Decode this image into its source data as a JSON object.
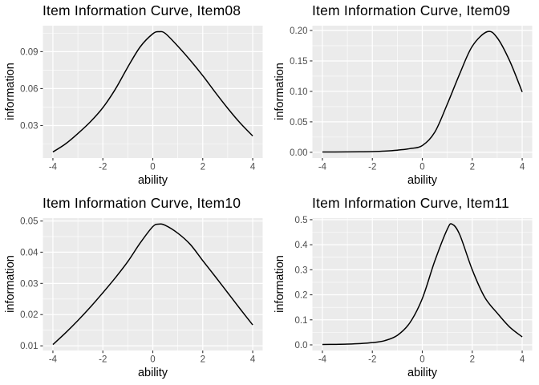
{
  "styles": {
    "panel_bg": "#EBEBEB",
    "grid_color": "#FFFFFF",
    "line_color": "#000000",
    "tick_color": "#333333",
    "tick_label_color": "#4D4D4D",
    "title_color": "#000000"
  },
  "chart_data": [
    {
      "type": "line",
      "title": "Item Information Curve, Item08",
      "xlabel": "ability",
      "ylabel": "information",
      "x_domain": [
        -4.4,
        4.4
      ],
      "y_domain": [
        0.0036,
        0.1111
      ],
      "x_ticks": [
        -4,
        -2,
        0,
        2,
        4
      ],
      "x_tick_labels": [
        "-4",
        "-2",
        "0",
        "2",
        "4"
      ],
      "y_ticks": [
        0.03,
        0.06,
        0.09
      ],
      "y_tick_labels": [
        "0.03",
        "0.06",
        "0.09"
      ],
      "grid": true,
      "legend": "none",
      "series": [
        {
          "name": "information",
          "x": [
            -4,
            -3.5,
            -3,
            -2.5,
            -2,
            -1.5,
            -1,
            -0.5,
            0,
            0.25,
            0.5,
            1,
            1.5,
            2,
            2.5,
            3,
            3.5,
            4
          ],
          "y": [
            0.0085,
            0.015,
            0.0235,
            0.033,
            0.0445,
            0.0595,
            0.0775,
            0.094,
            0.1045,
            0.1062,
            0.1048,
            0.0945,
            0.083,
            0.0705,
            0.057,
            0.044,
            0.032,
            0.0215
          ]
        }
      ]
    },
    {
      "type": "line",
      "title": "Item Information Curve, Item09",
      "xlabel": "ability",
      "ylabel": "information",
      "x_domain": [
        -4.4,
        4.4
      ],
      "y_domain": [
        -0.0094,
        0.2079
      ],
      "x_ticks": [
        -4,
        -2,
        0,
        2,
        4
      ],
      "x_tick_labels": [
        "-4",
        "-2",
        "0",
        "2",
        "4"
      ],
      "y_ticks": [
        0.0,
        0.05,
        0.1,
        0.15,
        0.2
      ],
      "y_tick_labels": [
        "0.00",
        "0.05",
        "0.10",
        "0.15",
        "0.20"
      ],
      "grid": true,
      "legend": "none",
      "series": [
        {
          "name": "information",
          "x": [
            -4,
            -3.5,
            -3,
            -2.5,
            -2,
            -1.5,
            -1,
            -0.5,
            0,
            0.5,
            1,
            1.5,
            2,
            2.6,
            3,
            3.5,
            4
          ],
          "y": [
            0.0005,
            0.0005,
            0.0006,
            0.0008,
            0.0012,
            0.002,
            0.0035,
            0.006,
            0.011,
            0.033,
            0.079,
            0.129,
            0.174,
            0.198,
            0.188,
            0.15,
            0.099
          ]
        }
      ]
    },
    {
      "type": "line",
      "title": "Item Information Curve, Item10",
      "xlabel": "ability",
      "ylabel": "information",
      "x_domain": [
        -4.4,
        4.4
      ],
      "y_domain": [
        0.0085,
        0.0509
      ],
      "x_ticks": [
        -4,
        -2,
        0,
        2,
        4
      ],
      "x_tick_labels": [
        "-4",
        "-2",
        "0",
        "2",
        "4"
      ],
      "y_ticks": [
        0.01,
        0.02,
        0.03,
        0.04,
        0.05
      ],
      "y_tick_labels": [
        "0.01",
        "0.02",
        "0.03",
        "0.04",
        "0.05"
      ],
      "grid": true,
      "legend": "none",
      "series": [
        {
          "name": "information",
          "x": [
            -4,
            -3.5,
            -3,
            -2.5,
            -2,
            -1.5,
            -1,
            -0.5,
            0,
            0.25,
            0.5,
            1,
            1.5,
            2,
            2.5,
            3,
            3.5,
            4
          ],
          "y": [
            0.0104,
            0.0141,
            0.0181,
            0.0224,
            0.027,
            0.0318,
            0.037,
            0.043,
            0.0482,
            0.049,
            0.0486,
            0.0461,
            0.0425,
            0.0373,
            0.0322,
            0.027,
            0.0218,
            0.0167
          ]
        }
      ]
    },
    {
      "type": "line",
      "title": "Item Information Curve, Item11",
      "xlabel": "ability",
      "ylabel": "information",
      "x_domain": [
        -4.4,
        4.4
      ],
      "y_domain": [
        -0.0225,
        0.5061
      ],
      "x_ticks": [
        -4,
        -2,
        0,
        2,
        4
      ],
      "x_tick_labels": [
        "-4",
        "-2",
        "0",
        "2",
        "4"
      ],
      "y_ticks": [
        0.0,
        0.1,
        0.2,
        0.3,
        0.4,
        0.5
      ],
      "y_tick_labels": [
        "0.0",
        "0.1",
        "0.2",
        "0.3",
        "0.4",
        "0.5"
      ],
      "grid": true,
      "legend": "none",
      "series": [
        {
          "name": "information",
          "x": [
            -4,
            -3.5,
            -3,
            -2.5,
            -2,
            -1.5,
            -1,
            -0.5,
            0,
            0.5,
            1,
            1.2,
            1.5,
            2,
            2.5,
            3,
            3.5,
            4
          ],
          "y": [
            0.0015,
            0.002,
            0.003,
            0.005,
            0.009,
            0.017,
            0.038,
            0.088,
            0.185,
            0.335,
            0.462,
            0.482,
            0.44,
            0.3,
            0.19,
            0.127,
            0.071,
            0.032
          ]
        }
      ]
    }
  ]
}
